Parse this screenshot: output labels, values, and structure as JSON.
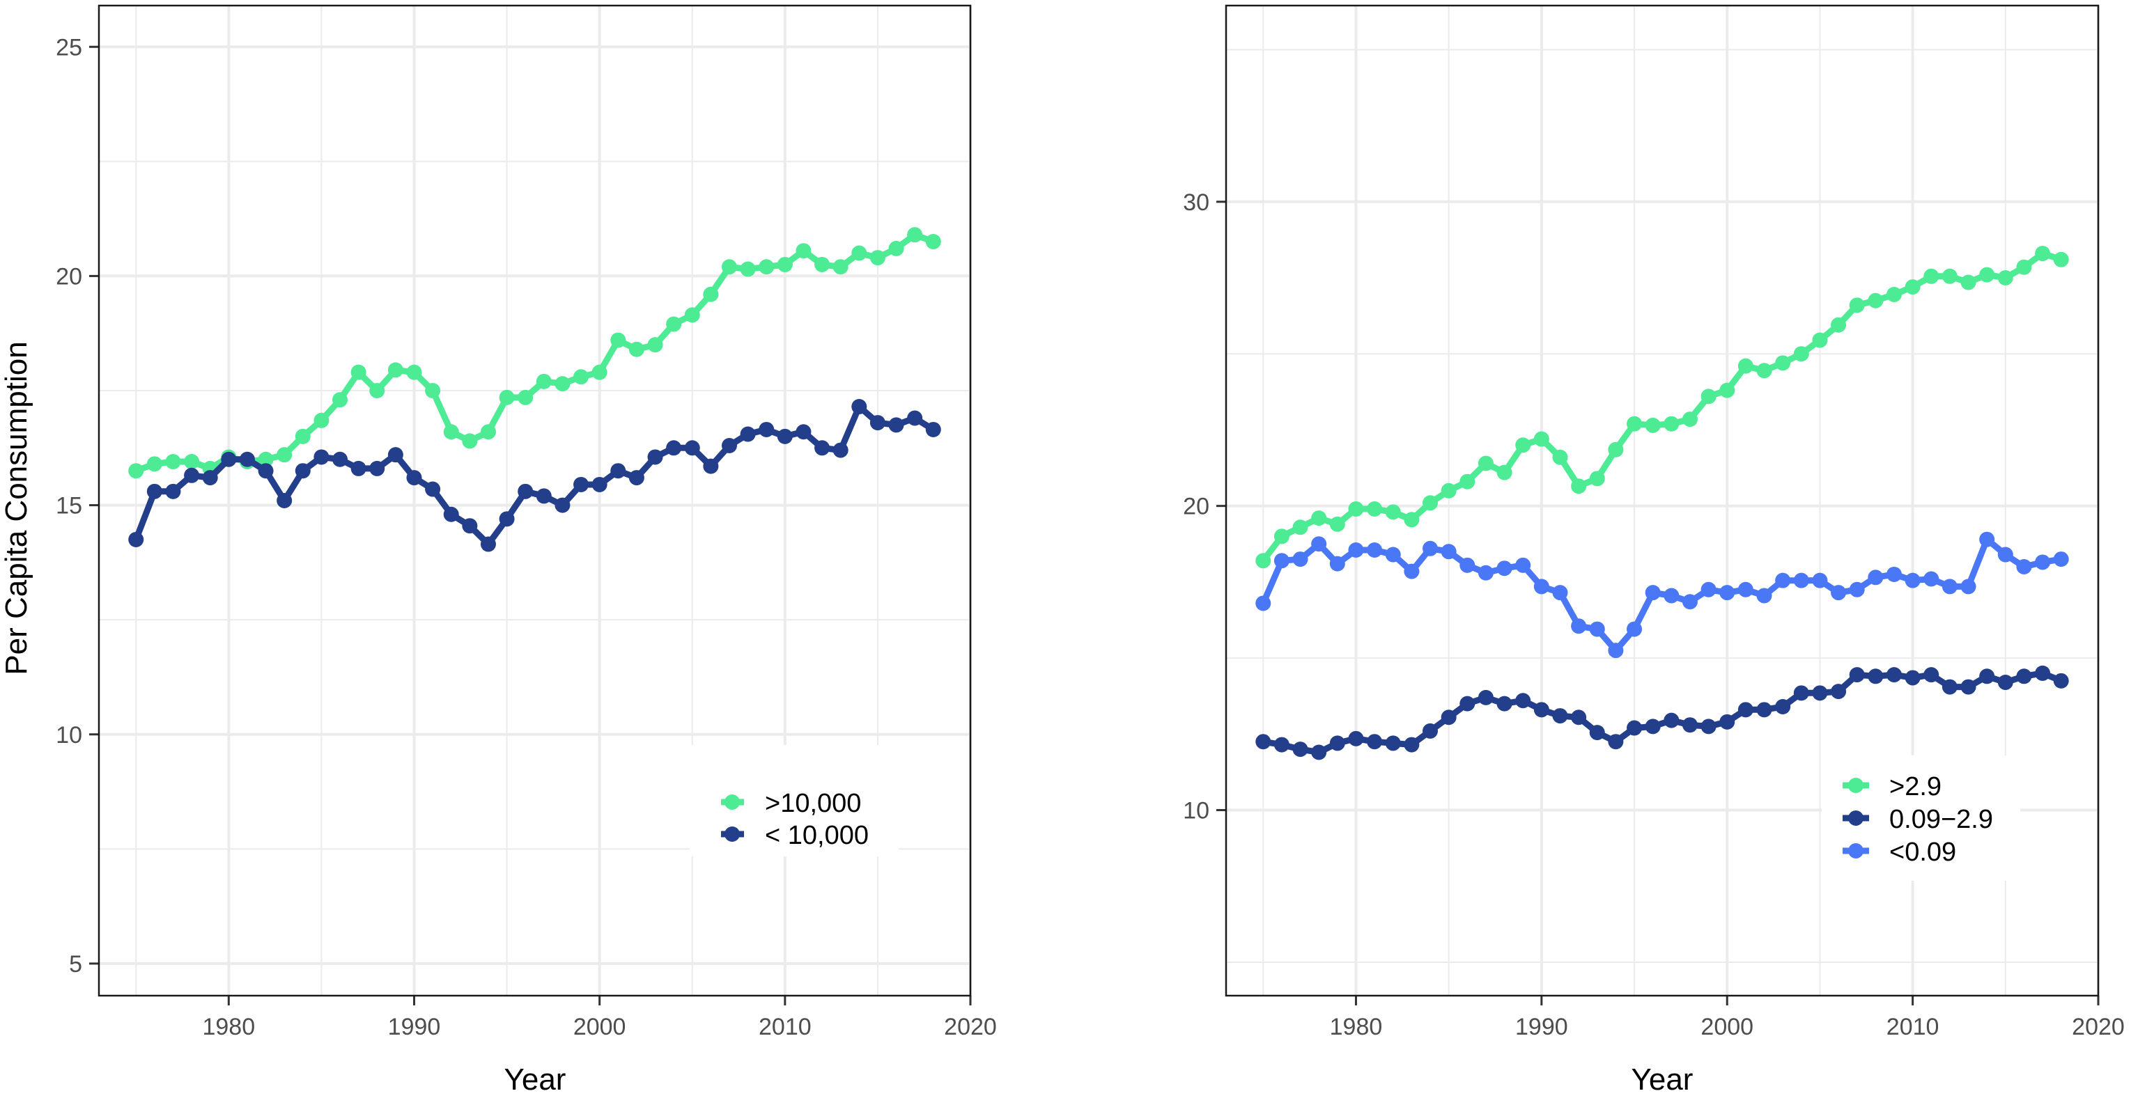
{
  "chart_data": [
    {
      "type": "line",
      "title": "",
      "xlabel": "Year",
      "ylabel": "Per Capita Consumption",
      "xlim": [
        1973,
        2020
      ],
      "ylim": [
        4.3,
        25.9
      ],
      "xticks": [
        1980,
        1990,
        2000,
        2010,
        2020
      ],
      "yticks": [
        5,
        10,
        15,
        20,
        25
      ],
      "grid": true,
      "legend_position": "inside-bottom-right",
      "x": [
        1975,
        1976,
        1977,
        1978,
        1979,
        1980,
        1981,
        1982,
        1983,
        1984,
        1985,
        1986,
        1987,
        1988,
        1989,
        1990,
        1991,
        1992,
        1993,
        1994,
        1995,
        1996,
        1997,
        1998,
        1999,
        2000,
        2001,
        2002,
        2003,
        2004,
        2005,
        2006,
        2007,
        2008,
        2009,
        2010,
        2011,
        2012,
        2013,
        2014,
        2015,
        2016,
        2017,
        2018
      ],
      "series": [
        {
          "name": ">10,000",
          "color": "#4DEB94",
          "values": [
            15.75,
            15.9,
            15.95,
            15.95,
            15.8,
            16.05,
            15.95,
            16.0,
            16.1,
            16.5,
            16.85,
            17.3,
            17.9,
            17.5,
            17.95,
            17.9,
            17.5,
            16.6,
            16.4,
            16.6,
            17.35,
            17.35,
            17.7,
            17.65,
            17.8,
            17.9,
            18.6,
            18.4,
            18.5,
            18.95,
            19.15,
            19.6,
            20.2,
            20.15,
            20.2,
            20.25,
            20.55,
            20.25,
            20.2,
            20.5,
            20.4,
            20.6,
            20.9,
            20.75
          ]
        },
        {
          "name": "< 10,000",
          "color": "#233E8B",
          "values": [
            14.25,
            15.3,
            15.3,
            15.65,
            15.6,
            16.0,
            16.0,
            15.75,
            15.1,
            15.75,
            16.05,
            16.0,
            15.8,
            15.8,
            16.1,
            15.6,
            15.35,
            14.8,
            14.55,
            14.15,
            14.7,
            15.3,
            15.2,
            15.0,
            15.45,
            15.45,
            15.75,
            15.6,
            16.05,
            16.25,
            16.25,
            15.85,
            16.3,
            16.55,
            16.65,
            16.5,
            16.6,
            16.25,
            16.2,
            17.15,
            16.8,
            16.75,
            16.9,
            16.65
          ]
        }
      ]
    },
    {
      "type": "line",
      "title": "",
      "xlabel": "Year",
      "ylabel": "",
      "xlim": [
        1973,
        2020
      ],
      "ylim": [
        3.9,
        36.45
      ],
      "xticks": [
        1980,
        1990,
        2000,
        2010,
        2020
      ],
      "yticks": [
        10,
        20,
        30
      ],
      "grid": true,
      "legend_position": "inside-bottom-right",
      "x": [
        1975,
        1976,
        1977,
        1978,
        1979,
        1980,
        1981,
        1982,
        1983,
        1984,
        1985,
        1986,
        1987,
        1988,
        1989,
        1990,
        1991,
        1992,
        1993,
        1994,
        1995,
        1996,
        1997,
        1998,
        1999,
        2000,
        2001,
        2002,
        2003,
        2004,
        2005,
        2006,
        2007,
        2008,
        2009,
        2010,
        2011,
        2012,
        2013,
        2014,
        2015,
        2016,
        2017,
        2018
      ],
      "series": [
        {
          "name": ">2.9",
          "color": "#4DEB94",
          "values": [
            18.2,
            19.0,
            19.3,
            19.6,
            19.4,
            19.9,
            19.9,
            19.8,
            19.55,
            20.1,
            20.5,
            20.8,
            21.4,
            21.1,
            22.0,
            22.2,
            21.6,
            20.65,
            20.9,
            21.85,
            22.7,
            22.65,
            22.7,
            22.85,
            23.6,
            23.8,
            24.6,
            24.45,
            24.7,
            25.0,
            25.45,
            25.95,
            26.6,
            26.75,
            26.95,
            27.2,
            27.55,
            27.55,
            27.35,
            27.6,
            27.5,
            27.85,
            28.3,
            28.1
          ]
        },
        {
          "name": "0.09−2.9",
          "color": "#233E8B",
          "values": [
            12.25,
            12.15,
            12.0,
            11.9,
            12.2,
            12.35,
            12.25,
            12.2,
            12.15,
            12.6,
            13.05,
            13.5,
            13.7,
            13.5,
            13.6,
            13.3,
            13.1,
            13.05,
            12.55,
            12.25,
            12.7,
            12.75,
            12.95,
            12.8,
            12.75,
            12.9,
            13.3,
            13.3,
            13.4,
            13.85,
            13.85,
            13.9,
            14.45,
            14.4,
            14.45,
            14.35,
            14.45,
            14.05,
            14.05,
            14.4,
            14.2,
            14.4,
            14.5,
            14.25
          ]
        },
        {
          "name": "<0.09",
          "color": "#4A77F5",
          "values": [
            16.8,
            18.2,
            18.25,
            18.75,
            18.1,
            18.55,
            18.55,
            18.4,
            17.85,
            18.6,
            18.5,
            18.05,
            17.8,
            17.95,
            18.05,
            17.35,
            17.15,
            16.05,
            15.95,
            15.25,
            15.95,
            17.15,
            17.05,
            16.85,
            17.25,
            17.15,
            17.25,
            17.05,
            17.55,
            17.55,
            17.55,
            17.15,
            17.25,
            17.65,
            17.75,
            17.55,
            17.6,
            17.35,
            17.35,
            18.9,
            18.4,
            18.0,
            18.15,
            18.25
          ]
        }
      ]
    }
  ],
  "left_panel": {
    "ylabel": "Per Capita Consumption",
    "xlabel": "Year",
    "y_tick_labels": [
      "5",
      "10",
      "15",
      "20",
      "25"
    ],
    "x_tick_labels": [
      "1980",
      "1990",
      "2000",
      "2010",
      "2020"
    ],
    "legend": [
      ">10,000",
      "< 10,000"
    ]
  },
  "right_panel": {
    "xlabel": "Year",
    "y_tick_labels": [
      "10",
      "20",
      "30"
    ],
    "x_tick_labels": [
      "1980",
      "1990",
      "2000",
      "2010",
      "2020"
    ],
    "legend": [
      ">2.9",
      "0.09−2.9",
      "<0.09"
    ]
  }
}
